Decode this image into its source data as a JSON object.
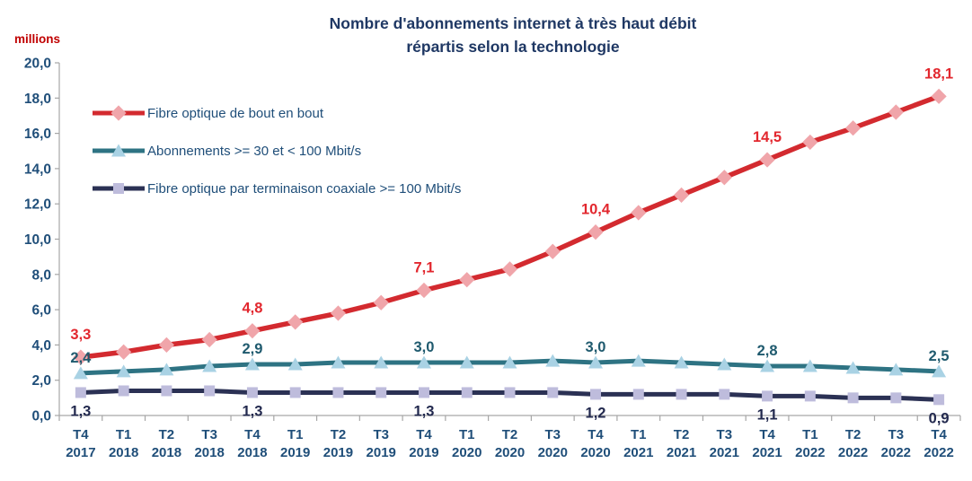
{
  "title": {
    "line1": "Nombre d'abonnements internet à très haut débit",
    "line2": "répartis selon la technologie"
  },
  "y_axis": {
    "unit_label": "millions",
    "tick_labels": [
      "0,0",
      "2,0",
      "4,0",
      "6,0",
      "8,0",
      "10,0",
      "12,0",
      "14,0",
      "16,0",
      "18,0",
      "20,0"
    ]
  },
  "colors": {
    "title_text": "#1F3864",
    "axis_text": "#1F4E79",
    "axis_line": "#A6A6A6",
    "unit_label": "#C00000",
    "background": "#FFFFFF"
  },
  "chart_data": {
    "type": "line",
    "title": "Nombre d'abonnements internet à très haut débit répartis selon la technologie",
    "ylabel": "millions",
    "ylim": [
      0,
      20
    ],
    "y_tick_step": 2,
    "grid": false,
    "legend_position": "inside-top-left",
    "categories": [
      "T4 2017",
      "T1 2018",
      "T2 2018",
      "T3 2018",
      "T4 2018",
      "T1 2019",
      "T2 2019",
      "T3 2019",
      "T4 2019",
      "T1 2020",
      "T2 2020",
      "T3 2020",
      "T4 2020",
      "T1 2021",
      "T2 2021",
      "T3 2021",
      "T4 2021",
      "T1 2022",
      "T2 2022",
      "T3 2022",
      "T4 2022"
    ],
    "series": [
      {
        "name": "Fibre optique de bout en bout",
        "marker": "diamond",
        "line_color": "#D32A2F",
        "marker_fill": "#F0A5AA",
        "label_color": "#E2272E",
        "label_offset": -20,
        "values": [
          3.3,
          3.6,
          4.0,
          4.3,
          4.8,
          5.3,
          5.8,
          6.4,
          7.1,
          7.7,
          8.3,
          9.3,
          10.4,
          11.5,
          12.5,
          13.5,
          14.5,
          15.5,
          16.3,
          17.2,
          18.1
        ],
        "point_labels": {
          "0": "3,3",
          "4": "4,8",
          "8": "7,1",
          "12": "10,4",
          "16": "14,5",
          "20": "18,1"
        }
      },
      {
        "name": "Abonnements >= 30 et < 100 Mbit/s",
        "marker": "triangle",
        "line_color": "#2E7383",
        "marker_fill": "#A9D2E4",
        "label_color": "#1F5A6E",
        "label_offset": -12,
        "values": [
          2.4,
          2.5,
          2.6,
          2.8,
          2.9,
          2.9,
          3.0,
          3.0,
          3.0,
          3.0,
          3.0,
          3.1,
          3.0,
          3.1,
          3.0,
          2.9,
          2.8,
          2.8,
          2.7,
          2.6,
          2.5
        ],
        "point_labels": {
          "0": "2,4",
          "4": "2,9",
          "8": "3,0",
          "12": "3,0",
          "16": "2,8",
          "20": "2,5"
        }
      },
      {
        "name": "Fibre optique par terminaison coaxiale >= 100 Mbit/s",
        "marker": "square",
        "line_color": "#2B3154",
        "marker_fill": "#BEBCDC",
        "label_color": "#22294E",
        "label_offset": 26,
        "values": [
          1.3,
          1.4,
          1.4,
          1.4,
          1.3,
          1.3,
          1.3,
          1.3,
          1.3,
          1.3,
          1.3,
          1.3,
          1.2,
          1.2,
          1.2,
          1.2,
          1.1,
          1.1,
          1.0,
          1.0,
          0.9
        ],
        "point_labels": {
          "0": "1,3",
          "4": "1,3",
          "8": "1,3",
          "12": "1,2",
          "16": "1,1",
          "20": "0,9"
        }
      }
    ]
  }
}
